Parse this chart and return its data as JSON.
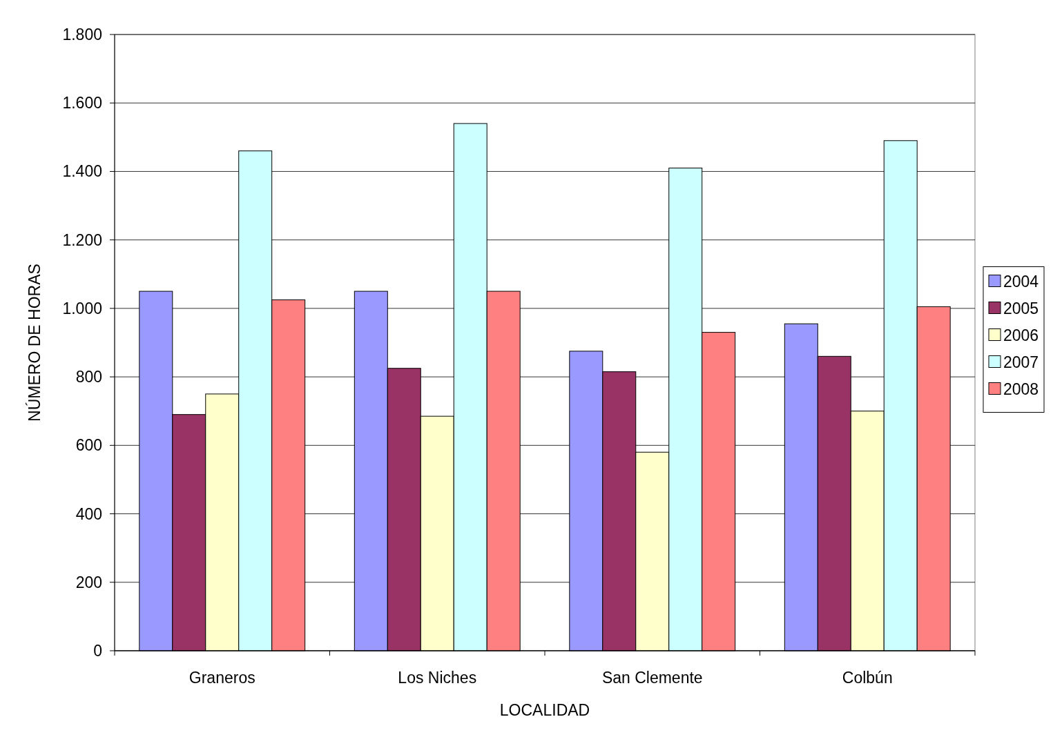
{
  "chart_data": {
    "type": "bar",
    "xlabel": "LOCALIDAD",
    "ylabel": "NÚMERO DE HORAS",
    "categories": [
      "Graneros",
      "Los Niches",
      "San Clemente",
      "Colbún"
    ],
    "series": [
      {
        "name": "2004",
        "color": "#9999ff",
        "values": [
          1050,
          1050,
          875,
          955
        ]
      },
      {
        "name": "2005",
        "color": "#993366",
        "values": [
          690,
          825,
          815,
          860
        ]
      },
      {
        "name": "2006",
        "color": "#ffffcc",
        "values": [
          750,
          685,
          580,
          700
        ]
      },
      {
        "name": "2007",
        "color": "#ccffff",
        "values": [
          1460,
          1540,
          1410,
          1490
        ]
      },
      {
        "name": "2008",
        "color": "#ff8080",
        "values": [
          1025,
          1050,
          930,
          1005
        ]
      }
    ],
    "ylim": [
      0,
      1800
    ],
    "yticks": [
      0,
      200,
      400,
      600,
      800,
      {
        "value": 1000,
        "label": "1.000"
      },
      {
        "value": 1200,
        "label": "1.200"
      },
      {
        "value": 1400,
        "label": "1.400"
      },
      {
        "value": 1600,
        "label": "1.600"
      },
      {
        "value": 1800,
        "label": "1.800"
      }
    ],
    "grid": "y",
    "legend": "right"
  }
}
